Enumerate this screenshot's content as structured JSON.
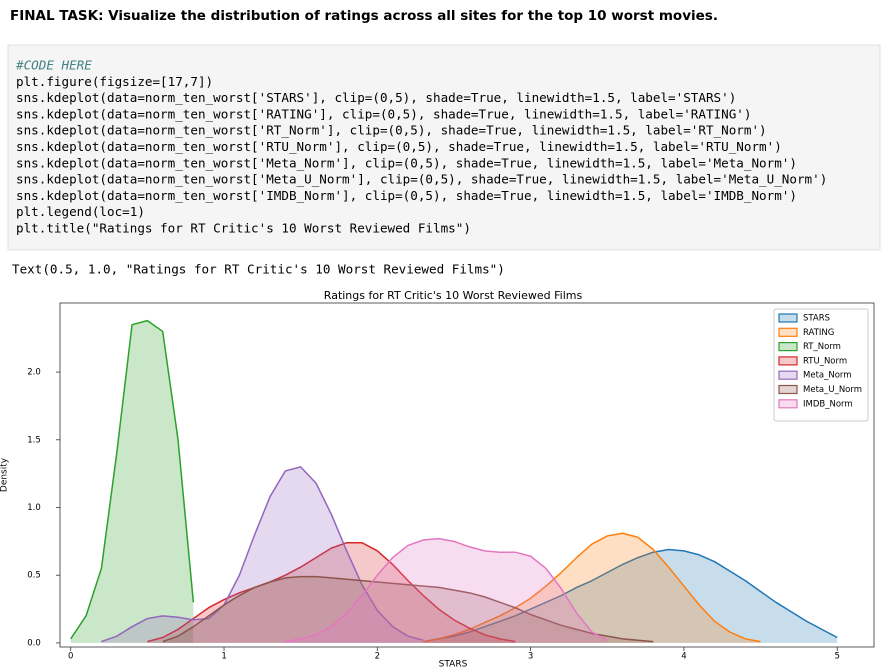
{
  "header": {
    "title": "FINAL TASK: Visualize the distribution of ratings across all sites for the top 10 worst movies."
  },
  "code": {
    "lines": [
      "#CODE HERE",
      "plt.figure(figsize=[17,7])",
      "sns.kdeplot(data=norm_ten_worst['STARS'], clip=(0,5), shade=True, linewidth=1.5, label='STARS')",
      "sns.kdeplot(data=norm_ten_worst['RATING'], clip=(0,5), shade=True, linewidth=1.5, label='RATING')",
      "sns.kdeplot(data=norm_ten_worst['RT_Norm'], clip=(0,5), shade=True, linewidth=1.5, label='RT_Norm')",
      "sns.kdeplot(data=norm_ten_worst['RTU_Norm'], clip=(0,5), shade=True, linewidth=1.5, label='RTU_Norm')",
      "sns.kdeplot(data=norm_ten_worst['Meta_Norm'], clip=(0,5), shade=True, linewidth=1.5, label='Meta_Norm')",
      "sns.kdeplot(data=norm_ten_worst['Meta_U_Norm'], clip=(0,5), shade=True, linewidth=1.5, label='Meta_U_Norm')",
      "sns.kdeplot(data=norm_ten_worst['IMDB_Norm'], clip=(0,5), shade=True, linewidth=1.5, label='IMDB_Norm')",
      "plt.legend(loc=1)",
      "plt.title(\"Ratings for RT Critic's 10 Worst Reviewed Films\")"
    ]
  },
  "output": {
    "text": "Text(0.5, 1.0, \"Ratings for RT Critic's 10 Worst Reviewed Films\")"
  },
  "chart_data": {
    "type": "kde",
    "title": "Ratings for RT Critic's 10 Worst Reviewed Films",
    "x_label": "STARS",
    "y_label": "Density",
    "x": [
      0,
      0.1,
      0.2,
      0.3,
      0.4,
      0.5,
      0.6,
      0.7,
      0.8,
      0.9,
      1,
      1.1,
      1.2,
      1.3,
      1.4,
      1.5,
      1.6,
      1.7,
      1.8,
      1.9,
      2,
      2.1,
      2.2,
      2.3,
      2.4,
      2.5,
      2.6,
      2.7,
      2.8,
      2.9,
      3,
      3.1,
      3.2,
      3.3,
      3.4,
      3.5,
      3.6,
      3.7,
      3.8,
      3.9,
      4,
      4.1,
      4.2,
      4.3,
      4.4,
      4.5,
      4.6,
      4.7,
      4.8,
      4.9,
      5
    ],
    "series": [
      {
        "name": "STARS",
        "color": "#1f77b4",
        "values": [
          null,
          null,
          null,
          null,
          null,
          null,
          null,
          null,
          null,
          null,
          null,
          null,
          null,
          null,
          null,
          null,
          null,
          null,
          null,
          null,
          null,
          null,
          null,
          0.01,
          0.03,
          0.05,
          0.08,
          0.12,
          0.16,
          0.2,
          0.25,
          0.3,
          0.35,
          0.41,
          0.46,
          0.52,
          0.58,
          0.63,
          0.67,
          0.69,
          0.68,
          0.65,
          0.6,
          0.53,
          0.46,
          0.38,
          0.3,
          0.23,
          0.16,
          0.1,
          0.04
        ]
      },
      {
        "name": "RATING",
        "color": "#ff7f0e",
        "values": [
          null,
          null,
          null,
          null,
          null,
          null,
          null,
          null,
          null,
          null,
          null,
          null,
          null,
          null,
          null,
          null,
          null,
          null,
          null,
          null,
          null,
          null,
          null,
          0.01,
          0.03,
          0.06,
          0.1,
          0.15,
          0.2,
          0.26,
          0.33,
          0.42,
          0.52,
          0.63,
          0.73,
          0.79,
          0.81,
          0.78,
          0.69,
          0.56,
          0.42,
          0.28,
          0.16,
          0.08,
          0.03,
          0.01,
          null,
          null,
          null,
          null,
          null
        ]
      },
      {
        "name": "RT_Norm",
        "color": "#2ca02c",
        "values": [
          0.03,
          0.2,
          0.55,
          1.4,
          2.35,
          2.38,
          2.3,
          1.5,
          0.3,
          null,
          null,
          null,
          null,
          null,
          null,
          null,
          null,
          null,
          null,
          null,
          null,
          null,
          null,
          null,
          null,
          null,
          null,
          null,
          null,
          null,
          null,
          null,
          null,
          null,
          null,
          null,
          null,
          null,
          null,
          null,
          null,
          null,
          null,
          null,
          null,
          null,
          null,
          null,
          null,
          null,
          null
        ]
      },
      {
        "name": "RTU_Norm",
        "color": "#d62728",
        "values": [
          null,
          null,
          null,
          null,
          null,
          0.01,
          0.04,
          0.1,
          0.18,
          0.26,
          0.32,
          0.37,
          0.41,
          0.45,
          0.5,
          0.56,
          0.63,
          0.7,
          0.74,
          0.74,
          0.68,
          0.58,
          0.46,
          0.35,
          0.25,
          0.17,
          0.11,
          0.06,
          0.03,
          0.01,
          null,
          null,
          null,
          null,
          null,
          null,
          null,
          null,
          null,
          null,
          null,
          null,
          null,
          null,
          null,
          null,
          null,
          null,
          null,
          null,
          null
        ]
      },
      {
        "name": "Meta_Norm",
        "color": "#9467bd",
        "values": [
          null,
          null,
          0.01,
          0.05,
          0.12,
          0.18,
          0.2,
          0.19,
          0.17,
          0.18,
          0.28,
          0.5,
          0.8,
          1.08,
          1.27,
          1.3,
          1.18,
          0.95,
          0.68,
          0.43,
          0.24,
          0.12,
          0.05,
          0.02,
          null,
          null,
          null,
          null,
          null,
          null,
          null,
          null,
          null,
          null,
          null,
          null,
          null,
          null,
          null,
          null,
          null,
          null,
          null,
          null,
          null,
          null,
          null,
          null,
          null,
          null,
          null
        ]
      },
      {
        "name": "Meta_U_Norm",
        "color": "#8c564b",
        "values": [
          null,
          null,
          null,
          null,
          null,
          null,
          0.01,
          0.05,
          0.12,
          0.2,
          0.28,
          0.35,
          0.41,
          0.45,
          0.48,
          0.49,
          0.49,
          0.48,
          0.47,
          0.46,
          0.45,
          0.44,
          0.43,
          0.42,
          0.41,
          0.39,
          0.37,
          0.34,
          0.3,
          0.26,
          0.21,
          0.17,
          0.13,
          0.1,
          0.07,
          0.05,
          0.03,
          0.02,
          0.01,
          null,
          null,
          null,
          null,
          null,
          null,
          null,
          null,
          null,
          null,
          null,
          null
        ]
      },
      {
        "name": "IMDB_Norm",
        "color": "#e377c2",
        "values": [
          null,
          null,
          null,
          null,
          null,
          null,
          null,
          null,
          null,
          null,
          null,
          null,
          null,
          null,
          0.01,
          0.03,
          0.06,
          0.12,
          0.22,
          0.35,
          0.5,
          0.63,
          0.72,
          0.76,
          0.77,
          0.75,
          0.71,
          0.68,
          0.67,
          0.67,
          0.64,
          0.55,
          0.4,
          0.22,
          0.08,
          0.02,
          null,
          null,
          null,
          null,
          null,
          null,
          null,
          null,
          null,
          null,
          null,
          null,
          null,
          null,
          null
        ]
      }
    ],
    "xlim": [
      -0.07,
      5.24
    ],
    "ylim": [
      -0.03,
      2.51
    ],
    "xticks": [
      0,
      1,
      2,
      3,
      4,
      5
    ],
    "yticks": [
      {
        "value": 0,
        "label": "0.0"
      },
      {
        "value": 0.5,
        "label": "0.5"
      },
      {
        "value": 1,
        "label": "1.0"
      },
      {
        "value": 1.5,
        "label": "1.5"
      },
      {
        "value": 2,
        "label": "2.0"
      }
    ],
    "legend": "upper right",
    "fill_opacity": 0.25
  }
}
